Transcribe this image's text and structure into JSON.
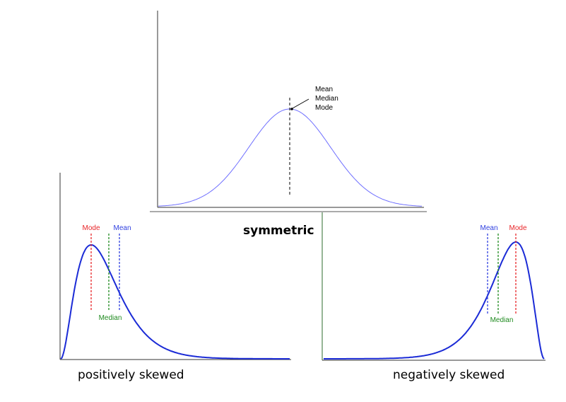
{
  "symmetric": {
    "caption": "symmetric",
    "annotation_lines": [
      "Mean",
      "Median",
      "Mode"
    ],
    "curve_color": "#6f6fff",
    "marker_color": "#000000"
  },
  "positive": {
    "caption": "positively skewed",
    "markers": [
      {
        "label": "Mode",
        "color": "#e8262a"
      },
      {
        "label": "Median",
        "color": "#1f8a1f"
      },
      {
        "label": "Mean",
        "color": "#3040e0"
      }
    ],
    "curve_color": "#1b2bd6"
  },
  "negative": {
    "caption": "negatively skewed",
    "markers": [
      {
        "label": "Mean",
        "color": "#3040e0"
      },
      {
        "label": "Median",
        "color": "#1f8a1f"
      },
      {
        "label": "Mode",
        "color": "#e8262a"
      }
    ],
    "curve_color": "#1b2bd6"
  }
}
